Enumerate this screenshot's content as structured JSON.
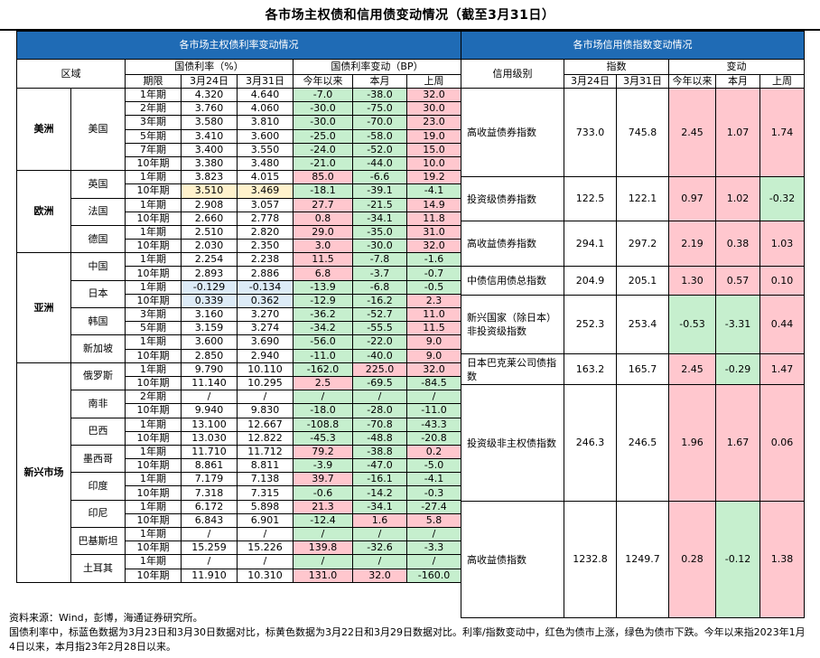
{
  "title": "各市场主权债和信用债变动情况（截至3月31日）",
  "left": {
    "band": "各市场主权债利率变动情况",
    "h_region": "区域",
    "h_rate": "国债利率（%）",
    "h_change": "国债利率变动（BP）",
    "sub": [
      "期限",
      "3月24日",
      "3月31日",
      "今年以来",
      "本月",
      "上周"
    ],
    "regions": [
      {
        "name": "美洲",
        "countries": [
          {
            "name": "美国",
            "rows": [
              {
                "term": "1年期",
                "a": "4.320",
                "b": "4.640",
                "ytd": "-7.0",
                "mtd": "-38.0",
                "wk": "32.0"
              },
              {
                "term": "2年期",
                "a": "3.760",
                "b": "4.060",
                "ytd": "-30.0",
                "mtd": "-75.0",
                "wk": "30.0"
              },
              {
                "term": "3年期",
                "a": "3.580",
                "b": "3.810",
                "ytd": "-30.0",
                "mtd": "-70.0",
                "wk": "23.0"
              },
              {
                "term": "5年期",
                "a": "3.410",
                "b": "3.600",
                "ytd": "-25.0",
                "mtd": "-58.0",
                "wk": "19.0"
              },
              {
                "term": "7年期",
                "a": "3.400",
                "b": "3.550",
                "ytd": "-24.0",
                "mtd": "-52.0",
                "wk": "15.0"
              },
              {
                "term": "10年期",
                "a": "3.380",
                "b": "3.480",
                "ytd": "-21.0",
                "mtd": "-44.0",
                "wk": "10.0"
              }
            ]
          }
        ]
      },
      {
        "name": "欧洲",
        "countries": [
          {
            "name": "英国",
            "rows": [
              {
                "term": "1年期",
                "a": "3.823",
                "b": "4.015",
                "ytd": "85.0",
                "mtd": "-6.6",
                "wk": "19.2"
              },
              {
                "term": "10年期",
                "a": "3.510",
                "b": "3.469",
                "ytd": "-18.1",
                "mtd": "-39.1",
                "wk": "-4.1"
              }
            ]
          },
          {
            "name": "法国",
            "rows": [
              {
                "term": "1年期",
                "a": "2.908",
                "b": "3.057",
                "ytd": "27.7",
                "mtd": "-21.5",
                "wk": "14.9"
              },
              {
                "term": "10年期",
                "a": "2.660",
                "b": "2.778",
                "ytd": "0.8",
                "mtd": "-34.1",
                "wk": "11.8"
              }
            ]
          },
          {
            "name": "德国",
            "rows": [
              {
                "term": "1年期",
                "a": "2.510",
                "b": "2.820",
                "ytd": "29.0",
                "mtd": "-35.0",
                "wk": "31.0"
              },
              {
                "term": "10年期",
                "a": "2.030",
                "b": "2.350",
                "ytd": "3.0",
                "mtd": "-30.0",
                "wk": "32.0"
              }
            ]
          }
        ]
      },
      {
        "name": "亚洲",
        "countries": [
          {
            "name": "中国",
            "rows": [
              {
                "term": "1年期",
                "a": "2.254",
                "b": "2.238",
                "ytd": "11.5",
                "mtd": "-7.8",
                "wk": "-1.6"
              },
              {
                "term": "10年期",
                "a": "2.893",
                "b": "2.886",
                "ytd": "6.8",
                "mtd": "-3.7",
                "wk": "-0.7"
              }
            ]
          },
          {
            "name": "日本",
            "rows": [
              {
                "term": "1年期",
                "a": "-0.129",
                "b": "-0.134",
                "ytd": "-13.9",
                "mtd": "-6.8",
                "wk": "-0.5"
              },
              {
                "term": "10年期",
                "a": "0.339",
                "b": "0.362",
                "ytd": "-12.9",
                "mtd": "-16.2",
                "wk": "2.3"
              }
            ]
          },
          {
            "name": "韩国",
            "rows": [
              {
                "term": "3年期",
                "a": "3.160",
                "b": "3.270",
                "ytd": "-36.2",
                "mtd": "-52.7",
                "wk": "11.0"
              },
              {
                "term": "5年期",
                "a": "3.159",
                "b": "3.274",
                "ytd": "-34.2",
                "mtd": "-55.5",
                "wk": "11.5"
              }
            ]
          },
          {
            "name": "新加坡",
            "rows": [
              {
                "term": "1年期",
                "a": "3.600",
                "b": "3.690",
                "ytd": "-56.0",
                "mtd": "-22.0",
                "wk": "9.0"
              },
              {
                "term": "10年期",
                "a": "2.850",
                "b": "2.940",
                "ytd": "-11.0",
                "mtd": "-40.0",
                "wk": "9.0"
              }
            ]
          }
        ]
      },
      {
        "name": "新兴市场",
        "countries": [
          {
            "name": "俄罗斯",
            "rows": [
              {
                "term": "1年期",
                "a": "9.790",
                "b": "10.110",
                "ytd": "-162.0",
                "mtd": "225.0",
                "wk": "32.0"
              },
              {
                "term": "10年期",
                "a": "11.140",
                "b": "10.295",
                "ytd": "2.5",
                "mtd": "-69.5",
                "wk": "-84.5"
              }
            ]
          },
          {
            "name": "南非",
            "rows": [
              {
                "term": "2年期",
                "a": "/",
                "b": "/",
                "ytd": "/",
                "mtd": "/",
                "wk": "/"
              },
              {
                "term": "10年期",
                "a": "9.940",
                "b": "9.830",
                "ytd": "-18.0",
                "mtd": "-28.0",
                "wk": "-11.0"
              }
            ]
          },
          {
            "name": "巴西",
            "rows": [
              {
                "term": "1年期",
                "a": "13.100",
                "b": "12.667",
                "ytd": "-108.8",
                "mtd": "-70.8",
                "wk": "-43.3"
              },
              {
                "term": "10年期",
                "a": "13.030",
                "b": "12.822",
                "ytd": "-45.3",
                "mtd": "-48.8",
                "wk": "-20.8"
              }
            ]
          },
          {
            "name": "墨西哥",
            "rows": [
              {
                "term": "1年期",
                "a": "11.710",
                "b": "11.712",
                "ytd": "79.2",
                "mtd": "-38.8",
                "wk": "0.2"
              },
              {
                "term": "10年期",
                "a": "8.861",
                "b": "8.811",
                "ytd": "-3.9",
                "mtd": "-47.0",
                "wk": "-5.0"
              }
            ]
          },
          {
            "name": "印度",
            "rows": [
              {
                "term": "1年期",
                "a": "7.179",
                "b": "7.138",
                "ytd": "39.7",
                "mtd": "-16.1",
                "wk": "-4.1"
              },
              {
                "term": "10年期",
                "a": "7.318",
                "b": "7.315",
                "ytd": "-0.6",
                "mtd": "-14.2",
                "wk": "-0.3"
              }
            ]
          },
          {
            "name": "印尼",
            "rows": [
              {
                "term": "1年期",
                "a": "6.172",
                "b": "5.898",
                "ytd": "21.3",
                "mtd": "-34.1",
                "wk": "-27.4"
              },
              {
                "term": "10年期",
                "a": "6.843",
                "b": "6.901",
                "ytd": "-12.4",
                "mtd": "1.6",
                "wk": "5.8"
              }
            ]
          },
          {
            "name": "巴基斯坦",
            "rows": [
              {
                "term": "1年期",
                "a": "/",
                "b": "/",
                "ytd": "/",
                "mtd": "/",
                "wk": "/"
              },
              {
                "term": "10年期",
                "a": "15.259",
                "b": "15.226",
                "ytd": "139.8",
                "mtd": "-32.6",
                "wk": "-3.3"
              }
            ]
          },
          {
            "name": "土耳其",
            "rows": [
              {
                "term": "1年期",
                "a": "/",
                "b": "/",
                "ytd": "/",
                "mtd": "/",
                "wk": "/"
              },
              {
                "term": "10年期",
                "a": "11.910",
                "b": "10.310",
                "ytd": "131.0",
                "mtd": "32.0",
                "wk": "-160.0"
              }
            ]
          }
        ]
      }
    ]
  },
  "right": {
    "band": "各市场信用债指数变动情况",
    "h_rating": "信用级别",
    "h_index": "指数",
    "h_change": "变动",
    "sub": [
      "3月24日",
      "3月31日",
      "今年以来",
      "本月",
      "上周"
    ],
    "rows": [
      {
        "name": "高收益债券指数",
        "a": "733.0",
        "b": "745.8",
        "ytd": "2.45",
        "mtd": "1.07",
        "wk": "1.74"
      },
      {
        "name": "投资级债券指数",
        "a": "122.5",
        "b": "122.1",
        "ytd": "0.97",
        "mtd": "1.02",
        "wk": "-0.32"
      },
      {
        "name": "高收益债券指数",
        "a": "294.1",
        "b": "297.2",
        "ytd": "2.19",
        "mtd": "0.38",
        "wk": "1.03"
      },
      {
        "name": "中债信用债总指数",
        "a": "204.9",
        "b": "205.1",
        "ytd": "1.30",
        "mtd": "0.57",
        "wk": "0.10"
      },
      {
        "name": "新兴国家（除日本）非投资级指数",
        "a": "252.3",
        "b": "253.4",
        "ytd": "-0.53",
        "mtd": "-3.31",
        "wk": "0.44"
      },
      {
        "name": "日本巴克莱公司债指数",
        "a": "163.2",
        "b": "165.7",
        "ytd": "2.45",
        "mtd": "-0.29",
        "wk": "1.47"
      },
      {
        "name": "投资级非主权债指数",
        "a": "246.3",
        "b": "246.5",
        "ytd": "1.96",
        "mtd": "1.67",
        "wk": "0.06"
      },
      {
        "name": "高收益债指数",
        "a": "1232.8",
        "b": "1249.7",
        "ytd": "0.28",
        "mtd": "-0.12",
        "wk": "1.38"
      }
    ]
  },
  "notes": {
    "source": "资料来源：Wind，彭博，海通证券研究所。",
    "note": "国债利率中，标蓝色数据为3月23日和3月30日数据对比，标黄色数据为3月22日和3月29日数据对比。利率/指数变动中，红色为债市上涨，绿色为债市下跌。今年以来指2023年1月4日以来，本月指23年2月28日以来。"
  },
  "colors": {
    "band": "#1F6BB5",
    "red": "#FFC7CE",
    "green": "#C6EFCE",
    "blue": "#DDEBF7",
    "yellow": "#FFF2CC"
  }
}
